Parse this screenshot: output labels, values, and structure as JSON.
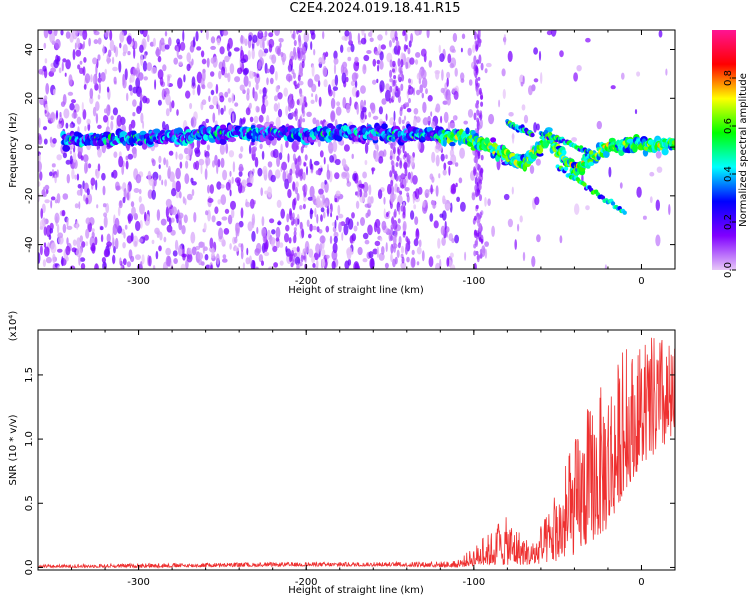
{
  "title": "C2E4.2024.019.18.41.R15",
  "chart_data": [
    {
      "type": "heatmap",
      "xlabel": "Height of straight line (km)",
      "ylabel": "Frequency (Hz)",
      "xlim": [
        -360,
        20
      ],
      "ylim": [
        -50,
        48
      ],
      "xticks": [
        -300,
        -200,
        -100,
        0
      ],
      "xtick_labels": [
        "-300",
        "-200",
        "-100",
        "0"
      ],
      "yticks": [
        -40,
        -20,
        0,
        20,
        40
      ],
      "ytick_labels": [
        "-40",
        "-20",
        "0",
        "20",
        "40"
      ],
      "colorbar": {
        "label": "Normalized spectral amplitude",
        "range": [
          0,
          1
        ],
        "ticks": [
          0.0,
          0.2,
          0.4,
          0.6,
          0.8
        ],
        "tick_labels": [
          "0.0",
          "0.2",
          "0.4",
          "0.6",
          "0.8"
        ],
        "colors": [
          "#e8c8f8",
          "#8000ff",
          "#0000ff",
          "#00ffff",
          "#00ff00",
          "#ffff00",
          "#ff0000",
          "#ff1493"
        ]
      },
      "ridge": [
        {
          "x": -320,
          "f": 3
        },
        {
          "x": -290,
          "f": 4
        },
        {
          "x": -260,
          "f": 5
        },
        {
          "x": -230,
          "f": 6
        },
        {
          "x": -200,
          "f": 5
        },
        {
          "x": -175,
          "f": 6
        },
        {
          "x": -150,
          "f": 5
        },
        {
          "x": -125,
          "f": 5
        },
        {
          "x": -110,
          "f": 4
        },
        {
          "x": -95,
          "f": 2
        },
        {
          "x": -80,
          "f": -4
        },
        {
          "x": -70,
          "f": -7
        },
        {
          "x": -55,
          "f": 4
        },
        {
          "x": -40,
          "f": -10
        },
        {
          "x": -25,
          "f": -2
        },
        {
          "x": -10,
          "f": 1
        },
        {
          "x": 10,
          "f": 1
        }
      ]
    },
    {
      "type": "line",
      "xlabel": "Height of straight line (km)",
      "ylabel": "SNR (10 * v/v)",
      "multiplier": "(x10⁴)",
      "xlim": [
        -360,
        20
      ],
      "ylim": [
        -0.02,
        1.85
      ],
      "xticks": [
        -300,
        -200,
        -100,
        0
      ],
      "xtick_labels": [
        "-300",
        "-200",
        "-100",
        "0"
      ],
      "yticks": [
        0.0,
        0.5,
        1.0,
        1.5
      ],
      "ytick_labels": [
        "0.0",
        "0.5",
        "1.0",
        "1.5"
      ],
      "color": "#ee3030",
      "envelope": [
        {
          "x": -360,
          "lo": 0.0,
          "hi": 0.02
        },
        {
          "x": -300,
          "lo": 0.0,
          "hi": 0.03
        },
        {
          "x": -200,
          "lo": 0.01,
          "hi": 0.04
        },
        {
          "x": -150,
          "lo": 0.01,
          "hi": 0.04
        },
        {
          "x": -110,
          "lo": 0.0,
          "hi": 0.05
        },
        {
          "x": -95,
          "lo": 0.02,
          "hi": 0.22
        },
        {
          "x": -80,
          "lo": 0.02,
          "hi": 0.4
        },
        {
          "x": -65,
          "lo": 0.02,
          "hi": 0.18
        },
        {
          "x": -50,
          "lo": 0.05,
          "hi": 0.6
        },
        {
          "x": -40,
          "lo": 0.1,
          "hi": 1.0
        },
        {
          "x": -30,
          "lo": 0.2,
          "hi": 1.3
        },
        {
          "x": -20,
          "lo": 0.3,
          "hi": 1.5
        },
        {
          "x": -10,
          "lo": 0.6,
          "hi": 1.7
        },
        {
          "x": 0,
          "lo": 0.8,
          "hi": 1.7
        },
        {
          "x": 10,
          "lo": 0.9,
          "hi": 1.85
        },
        {
          "x": 20,
          "lo": 1.0,
          "hi": 1.7
        }
      ]
    }
  ]
}
